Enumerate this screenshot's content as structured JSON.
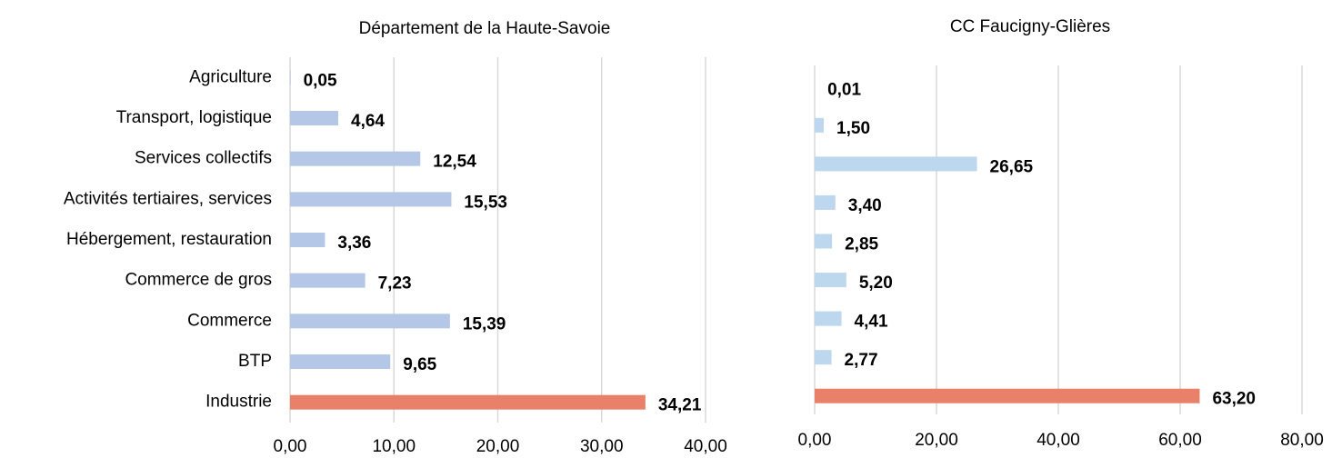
{
  "chart_data": [
    {
      "type": "hbar",
      "title": "Département de la Haute-Savoie",
      "categories": [
        "Agriculture",
        "Transport, logistique",
        "Services collectifs",
        "Activités tertiaires, services",
        "Hébergement, restauration",
        "Commerce de gros",
        "Commerce",
        "BTP",
        "Industrie"
      ],
      "values": [
        0.05,
        4.64,
        12.54,
        15.53,
        3.36,
        7.23,
        15.39,
        9.65,
        34.21
      ],
      "value_labels": [
        "0,05",
        "4,64",
        "12,54",
        "15,53",
        "3,36",
        "7,23",
        "15,39",
        "9,65",
        "34,21"
      ],
      "colors": [
        "#b4c7e7",
        "#b4c7e7",
        "#b4c7e7",
        "#b4c7e7",
        "#b4c7e7",
        "#b4c7e7",
        "#b4c7e7",
        "#b4c7e7",
        "#e8806a"
      ],
      "xlim": [
        0,
        40
      ],
      "xticks": [
        {
          "value": 0,
          "label": "0,00"
        },
        {
          "value": 10,
          "label": "10,00"
        },
        {
          "value": 20,
          "label": "20,00"
        },
        {
          "value": 30,
          "label": "30,00"
        },
        {
          "value": 40,
          "label": "40,00"
        }
      ],
      "grid": true
    },
    {
      "type": "hbar",
      "title": "CC Faucigny-Glières",
      "categories": [
        null,
        null,
        null,
        null,
        null,
        null,
        null,
        null,
        null
      ],
      "values": [
        0.01,
        1.5,
        26.65,
        3.4,
        2.85,
        5.2,
        4.41,
        2.77,
        63.2
      ],
      "value_labels": [
        "0,01",
        "1,50",
        "26,65",
        "3,40",
        "2,85",
        "5,20",
        "4,41",
        "2,77",
        "63,20"
      ],
      "colors": [
        "#bdd7ee",
        "#bdd7ee",
        "#bdd7ee",
        "#bdd7ee",
        "#bdd7ee",
        "#bdd7ee",
        "#bdd7ee",
        "#bdd7ee",
        "#e8806a"
      ],
      "xlim": [
        0,
        80
      ],
      "xticks": [
        {
          "value": 0,
          "label": "0,00"
        },
        {
          "value": 20,
          "label": "20,00"
        },
        {
          "value": 40,
          "label": "40,00"
        },
        {
          "value": 60,
          "label": "60,00"
        },
        {
          "value": 80,
          "label": "80,00"
        }
      ],
      "grid": true
    }
  ]
}
